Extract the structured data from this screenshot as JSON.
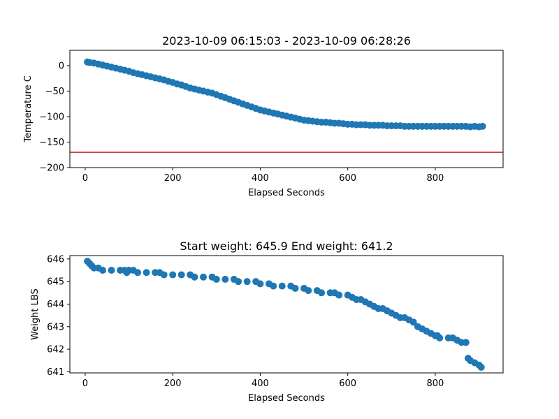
{
  "chart_data": [
    {
      "type": "scatter",
      "title": "2023-10-09 06:15:03 - 2023-10-09 06:28:26",
      "xlabel": "Elapsed Seconds",
      "ylabel": "Temperature C",
      "xlim": [
        -35,
        955
      ],
      "ylim": [
        -200,
        30
      ],
      "xticks": [
        0,
        200,
        400,
        600,
        800
      ],
      "yticks": [
        0,
        -50,
        -100,
        -150,
        -200
      ],
      "marker_color": "#1f77b4",
      "reference_line": {
        "y": -170,
        "color": "#d62728"
      },
      "points": [
        [
          5,
          7
        ],
        [
          10,
          6
        ],
        [
          20,
          5
        ],
        [
          30,
          3
        ],
        [
          40,
          1
        ],
        [
          50,
          -1
        ],
        [
          60,
          -3
        ],
        [
          70,
          -5
        ],
        [
          80,
          -7
        ],
        [
          90,
          -9
        ],
        [
          100,
          -11
        ],
        [
          110,
          -14
        ],
        [
          120,
          -16
        ],
        [
          130,
          -18
        ],
        [
          140,
          -20
        ],
        [
          150,
          -22
        ],
        [
          160,
          -24
        ],
        [
          170,
          -26
        ],
        [
          180,
          -28
        ],
        [
          190,
          -31
        ],
        [
          200,
          -33
        ],
        [
          210,
          -36
        ],
        [
          220,
          -38
        ],
        [
          230,
          -41
        ],
        [
          240,
          -44
        ],
        [
          250,
          -46
        ],
        [
          260,
          -48
        ],
        [
          270,
          -50
        ],
        [
          280,
          -52
        ],
        [
          290,
          -54
        ],
        [
          300,
          -57
        ],
        [
          310,
          -60
        ],
        [
          320,
          -63
        ],
        [
          330,
          -66
        ],
        [
          340,
          -69
        ],
        [
          350,
          -72
        ],
        [
          360,
          -75
        ],
        [
          370,
          -78
        ],
        [
          380,
          -81
        ],
        [
          390,
          -84
        ],
        [
          400,
          -87
        ],
        [
          410,
          -89
        ],
        [
          420,
          -91
        ],
        [
          430,
          -93
        ],
        [
          440,
          -95
        ],
        [
          450,
          -97
        ],
        [
          460,
          -99
        ],
        [
          470,
          -101
        ],
        [
          480,
          -103
        ],
        [
          490,
          -105
        ],
        [
          500,
          -107
        ],
        [
          510,
          -108
        ],
        [
          520,
          -109
        ],
        [
          530,
          -110
        ],
        [
          540,
          -111
        ],
        [
          550,
          -111
        ],
        [
          560,
          -112
        ],
        [
          570,
          -113
        ],
        [
          580,
          -113
        ],
        [
          590,
          -114
        ],
        [
          600,
          -115
        ],
        [
          610,
          -115
        ],
        [
          620,
          -116
        ],
        [
          630,
          -116
        ],
        [
          640,
          -116
        ],
        [
          650,
          -117
        ],
        [
          660,
          -117
        ],
        [
          670,
          -117
        ],
        [
          680,
          -117
        ],
        [
          690,
          -118
        ],
        [
          700,
          -118
        ],
        [
          710,
          -118
        ],
        [
          720,
          -118
        ],
        [
          730,
          -119
        ],
        [
          740,
          -119
        ],
        [
          750,
          -119
        ],
        [
          760,
          -119
        ],
        [
          770,
          -119
        ],
        [
          780,
          -119
        ],
        [
          790,
          -119
        ],
        [
          800,
          -119
        ],
        [
          810,
          -119
        ],
        [
          820,
          -119
        ],
        [
          830,
          -119
        ],
        [
          840,
          -119
        ],
        [
          850,
          -119
        ],
        [
          860,
          -119
        ],
        [
          870,
          -119
        ],
        [
          880,
          -120
        ],
        [
          890,
          -119
        ],
        [
          900,
          -120
        ],
        [
          908,
          -119
        ]
      ]
    },
    {
      "type": "scatter",
      "title": "Start weight: 645.9 End weight: 641.2",
      "xlabel": "Elapsed Seconds",
      "ylabel": "Weight LBS",
      "xlim": [
        -35,
        955
      ],
      "ylim": [
        640.95,
        646.15
      ],
      "xticks": [
        0,
        200,
        400,
        600,
        800
      ],
      "yticks": [
        646,
        645,
        644,
        643,
        642,
        641
      ],
      "marker_color": "#1f77b4",
      "points": [
        [
          5,
          645.9
        ],
        [
          10,
          645.8
        ],
        [
          15,
          645.7
        ],
        [
          20,
          645.6
        ],
        [
          30,
          645.6
        ],
        [
          40,
          645.5
        ],
        [
          60,
          645.5
        ],
        [
          80,
          645.5
        ],
        [
          90,
          645.5
        ],
        [
          95,
          645.4
        ],
        [
          100,
          645.5
        ],
        [
          110,
          645.5
        ],
        [
          120,
          645.4
        ],
        [
          140,
          645.4
        ],
        [
          160,
          645.4
        ],
        [
          170,
          645.4
        ],
        [
          180,
          645.3
        ],
        [
          200,
          645.3
        ],
        [
          220,
          645.3
        ],
        [
          240,
          645.3
        ],
        [
          250,
          645.2
        ],
        [
          270,
          645.2
        ],
        [
          290,
          645.2
        ],
        [
          300,
          645.1
        ],
        [
          320,
          645.1
        ],
        [
          340,
          645.1
        ],
        [
          350,
          645.0
        ],
        [
          370,
          645.0
        ],
        [
          390,
          645.0
        ],
        [
          400,
          644.9
        ],
        [
          420,
          644.9
        ],
        [
          430,
          644.8
        ],
        [
          450,
          644.8
        ],
        [
          470,
          644.8
        ],
        [
          480,
          644.7
        ],
        [
          500,
          644.7
        ],
        [
          510,
          644.6
        ],
        [
          530,
          644.6
        ],
        [
          540,
          644.5
        ],
        [
          560,
          644.5
        ],
        [
          570,
          644.5
        ],
        [
          580,
          644.4
        ],
        [
          600,
          644.4
        ],
        [
          610,
          644.3
        ],
        [
          620,
          644.2
        ],
        [
          630,
          644.2
        ],
        [
          640,
          644.1
        ],
        [
          650,
          644.0
        ],
        [
          660,
          643.9
        ],
        [
          670,
          643.8
        ],
        [
          680,
          643.8
        ],
        [
          690,
          643.7
        ],
        [
          700,
          643.6
        ],
        [
          710,
          643.5
        ],
        [
          720,
          643.4
        ],
        [
          730,
          643.4
        ],
        [
          740,
          643.3
        ],
        [
          750,
          643.2
        ],
        [
          760,
          643.0
        ],
        [
          770,
          642.9
        ],
        [
          780,
          642.8
        ],
        [
          790,
          642.7
        ],
        [
          800,
          642.6
        ],
        [
          805,
          642.6
        ],
        [
          810,
          642.5
        ],
        [
          830,
          642.5
        ],
        [
          840,
          642.5
        ],
        [
          850,
          642.4
        ],
        [
          860,
          642.3
        ],
        [
          870,
          642.3
        ],
        [
          875,
          641.6
        ],
        [
          880,
          641.5
        ],
        [
          890,
          641.4
        ],
        [
          900,
          641.3
        ],
        [
          905,
          641.2
        ]
      ]
    }
  ]
}
